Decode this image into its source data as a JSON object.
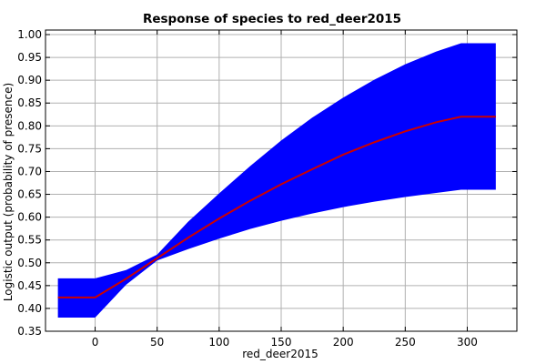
{
  "chart_data": {
    "type": "line",
    "title": "Response of species to red_deer2015",
    "xlabel": "red_deer2015",
    "ylabel": "Logistic output (probability of presence)",
    "xlim": [
      -40,
      340
    ],
    "ylim": [
      0.35,
      1.01
    ],
    "x_ticks": [
      0,
      50,
      100,
      150,
      200,
      250,
      300
    ],
    "y_ticks": [
      0.35,
      0.4,
      0.45,
      0.5,
      0.55,
      0.6,
      0.65,
      0.7,
      0.75,
      0.8,
      0.85,
      0.9,
      0.95,
      1.0
    ],
    "grid": true,
    "series": [
      {
        "role": "mean",
        "color": "#cc0000",
        "x": [
          -30,
          0,
          25,
          50,
          75,
          100,
          125,
          150,
          175,
          200,
          225,
          250,
          275,
          295,
          323
        ],
        "y": [
          0.424,
          0.424,
          0.465,
          0.51,
          0.555,
          0.597,
          0.636,
          0.672,
          0.705,
          0.737,
          0.764,
          0.788,
          0.808,
          0.82,
          0.82
        ]
      },
      {
        "role": "band",
        "color": "#0000ff",
        "x": [
          -30,
          0,
          25,
          50,
          75,
          100,
          125,
          150,
          175,
          200,
          225,
          250,
          275,
          295,
          323
        ],
        "lower": [
          0.38,
          0.38,
          0.452,
          0.505,
          0.53,
          0.553,
          0.574,
          0.592,
          0.608,
          0.622,
          0.634,
          0.644,
          0.653,
          0.66,
          0.66
        ],
        "upper": [
          0.466,
          0.466,
          0.484,
          0.518,
          0.59,
          0.652,
          0.712,
          0.768,
          0.818,
          0.862,
          0.901,
          0.935,
          0.963,
          0.981,
          0.981
        ]
      }
    ]
  }
}
